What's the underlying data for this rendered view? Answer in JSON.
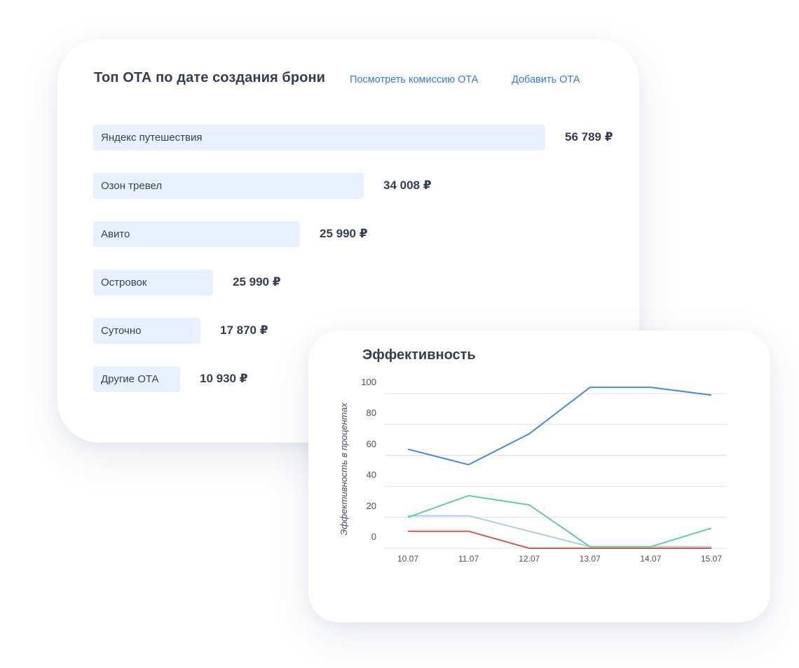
{
  "top_ota": {
    "title": "Топ ОТА по дате создания брони",
    "links": {
      "commission": "Посмотреть комиссию ОТА",
      "add": "Добавить ОТА"
    },
    "items": [
      {
        "label": "Яндекс путешествия",
        "value": "56 789 ₽",
        "amount": 56789
      },
      {
        "label": "Озон тревел",
        "value": "34 008 ₽",
        "amount": 34008
      },
      {
        "label": "Авито",
        "value": "25 990 ₽",
        "amount": 25990
      },
      {
        "label": "Островок",
        "value": "25 990 ₽",
        "amount": 25990
      },
      {
        "label": "Суточно",
        "value": "17 870 ₽",
        "amount": 17870
      },
      {
        "label": "Другие ОТА",
        "value": "10 930 ₽",
        "amount": 10930
      }
    ],
    "bar_color": "#e8f0fd"
  },
  "chart_data": {
    "type": "line",
    "title": "Эффективность",
    "xlabel": "",
    "ylabel": "Эффективность в процентах",
    "x": [
      "10.07",
      "11.07",
      "12.07",
      "13.07",
      "14.07",
      "15.07"
    ],
    "yticks": [
      0,
      20,
      40,
      60,
      80,
      100
    ],
    "ylim": [
      0,
      100
    ],
    "grid": true,
    "series": [
      {
        "color": "#3b8bea",
        "values": [
          64,
          54,
          74,
          104,
          104,
          99
        ]
      },
      {
        "color": "#5cd199",
        "values": [
          20,
          34,
          28,
          1,
          1,
          13
        ]
      },
      {
        "color": "#a9cdea",
        "values": [
          21,
          21,
          11,
          1,
          1,
          1
        ]
      },
      {
        "color": "#e0574a",
        "values": [
          11,
          11,
          0,
          0,
          0,
          0
        ]
      }
    ]
  }
}
